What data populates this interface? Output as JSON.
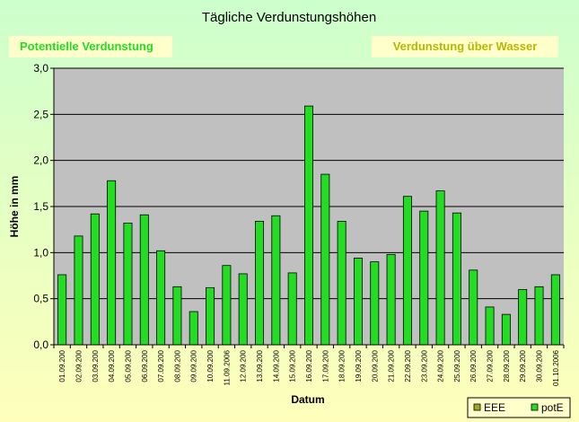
{
  "chart_data": {
    "type": "bar",
    "title": "Tägliche Verdunstungshöhen",
    "xlabel": "Datum",
    "ylabel": "Höhe in mm",
    "ylim": [
      0,
      3
    ],
    "yticks": [
      "0,0",
      "0,5",
      "1,0",
      "1,5",
      "2,0",
      "2,5",
      "3,0"
    ],
    "grid": true,
    "categories": [
      "01.09.200",
      "02.09.200",
      "03.09.200",
      "04.09.200",
      "05.09.200",
      "06.09.200",
      "07.09.200",
      "08.09.200",
      "09.09.200",
      "10.09.200",
      "11.09.2006",
      "12.09.200",
      "13.09.200",
      "14.09.200",
      "15.09.200",
      "16.09.200",
      "17.09.200",
      "18.09.200",
      "19.09.200",
      "20.09.200",
      "21.09.200",
      "22.09.200",
      "23.09.200",
      "24.09.200",
      "25.09.200",
      "26.09.200",
      "27.09.200",
      "28.09.200",
      "29.09.200",
      "30.09.200",
      "01.10.2006"
    ],
    "series": [
      {
        "name": "potE",
        "color": "#22dd22",
        "values": [
          0.76,
          1.18,
          1.42,
          1.78,
          1.32,
          1.41,
          1.02,
          0.63,
          0.36,
          0.62,
          0.86,
          0.77,
          1.34,
          1.4,
          0.78,
          2.59,
          1.85,
          1.34,
          0.94,
          0.9,
          0.98,
          1.61,
          1.45,
          1.67,
          1.43,
          0.81,
          0.41,
          0.33,
          0.6,
          0.63,
          0.76
        ]
      }
    ],
    "legend": {
      "position": "bottom-right",
      "entries": [
        {
          "label": "EEE",
          "color": "#99aa22"
        },
        {
          "label": "potE",
          "color": "#22dd22"
        }
      ]
    },
    "annotations": [
      {
        "text": "Potentielle Verdunstung",
        "color": "#22dd22"
      },
      {
        "text": "Verdunstung über Wasser",
        "color": "#b8b800"
      }
    ],
    "colors": {
      "background_top": "#ccffcc",
      "background_bottom": "#ffffbb",
      "plot_area": "#c0c0c0",
      "bar": "#22dd22"
    }
  }
}
